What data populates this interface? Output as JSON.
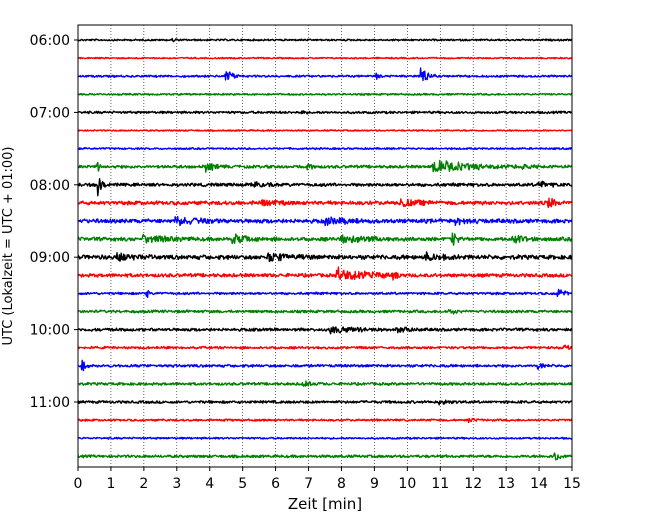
{
  "chart_data": {
    "type": "line",
    "title": "",
    "xlabel": "Zeit  [min]",
    "ylabel": "UTC (Lokalzeit = UTC + 01:00)",
    "xlim": [
      0,
      15
    ],
    "x_ticks": [
      "0",
      "1",
      "2",
      "3",
      "4",
      "5",
      "6",
      "7",
      "8",
      "9",
      "10",
      "11",
      "12",
      "13",
      "14",
      "15"
    ],
    "y_ticks": [
      "06:00",
      "07:00",
      "08:00",
      "09:00",
      "10:00",
      "11:00"
    ],
    "y_tick_trace_index": [
      0,
      4,
      8,
      12,
      16,
      20
    ],
    "grid": "vertical-dotted",
    "colors": [
      "#000000",
      "#ff0000",
      "#0000ff",
      "#008000"
    ],
    "traces": [
      {
        "start": "06:00",
        "color": "#000000",
        "noise": 0.6,
        "events": [
          {
            "t": 2.9,
            "amp": 3,
            "dur": 0.1
          }
        ]
      },
      {
        "start": "06:15",
        "color": "#ff0000",
        "noise": 0.5,
        "events": []
      },
      {
        "start": "06:30",
        "color": "#0000ff",
        "noise": 0.7,
        "events": [
          {
            "t": 4.5,
            "amp": 10,
            "dur": 0.4
          },
          {
            "t": 9.1,
            "amp": 4,
            "dur": 0.15
          },
          {
            "t": 10.45,
            "amp": 10,
            "dur": 0.4
          }
        ]
      },
      {
        "start": "06:45",
        "color": "#008000",
        "noise": 0.6,
        "events": []
      },
      {
        "start": "07:00",
        "color": "#000000",
        "noise": 0.8,
        "events": [
          {
            "t": 6.8,
            "amp": 3,
            "dur": 0.2
          }
        ]
      },
      {
        "start": "07:15",
        "color": "#ff0000",
        "noise": 0.5,
        "events": []
      },
      {
        "start": "07:30",
        "color": "#0000ff",
        "noise": 0.6,
        "events": []
      },
      {
        "start": "07:45",
        "color": "#008000",
        "noise": 1.0,
        "events": [
          {
            "t": 0.6,
            "amp": 5,
            "dur": 0.15
          },
          {
            "t": 3.9,
            "amp": 5,
            "dur": 0.6
          },
          {
            "t": 7.0,
            "amp": 4,
            "dur": 0.3
          },
          {
            "t": 10.8,
            "amp": 7,
            "dur": 2.5
          },
          {
            "t": 13.5,
            "amp": 3,
            "dur": 0.6
          }
        ]
      },
      {
        "start": "08:00",
        "color": "#000000",
        "noise": 1.1,
        "events": [
          {
            "t": 0.65,
            "amp": 12,
            "dur": 0.2
          },
          {
            "t": 5.3,
            "amp": 3,
            "dur": 0.8
          },
          {
            "t": 14.0,
            "amp": 4,
            "dur": 0.6
          }
        ]
      },
      {
        "start": "08:15",
        "color": "#ff0000",
        "noise": 1.3,
        "events": [
          {
            "t": 5.5,
            "amp": 4,
            "dur": 0.8
          },
          {
            "t": 9.8,
            "amp": 4,
            "dur": 1.2
          },
          {
            "t": 14.3,
            "amp": 6,
            "dur": 0.4
          }
        ]
      },
      {
        "start": "08:30",
        "color": "#0000ff",
        "noise": 1.4,
        "events": [
          {
            "t": 3.0,
            "amp": 4,
            "dur": 1.5
          },
          {
            "t": 7.5,
            "amp": 4,
            "dur": 1.4
          },
          {
            "t": 11.5,
            "amp": 3,
            "dur": 1.0
          }
        ]
      },
      {
        "start": "08:45",
        "color": "#008000",
        "noise": 1.3,
        "events": [
          {
            "t": 2.0,
            "amp": 4,
            "dur": 1.4
          },
          {
            "t": 4.7,
            "amp": 5,
            "dur": 1.0
          },
          {
            "t": 8.0,
            "amp": 5,
            "dur": 1.6
          },
          {
            "t": 11.4,
            "amp": 8,
            "dur": 0.3
          },
          {
            "t": 13.2,
            "amp": 4,
            "dur": 0.8
          }
        ]
      },
      {
        "start": "09:00",
        "color": "#000000",
        "noise": 1.5,
        "events": [
          {
            "t": 1.2,
            "amp": 4,
            "dur": 1.0
          },
          {
            "t": 5.8,
            "amp": 4,
            "dur": 1.4
          },
          {
            "t": 10.5,
            "amp": 4,
            "dur": 1.2
          }
        ]
      },
      {
        "start": "09:15",
        "color": "#ff0000",
        "noise": 1.2,
        "events": [
          {
            "t": 7.9,
            "amp": 8,
            "dur": 2.0
          },
          {
            "t": 9.6,
            "amp": 4,
            "dur": 0.2
          }
        ]
      },
      {
        "start": "09:30",
        "color": "#0000ff",
        "noise": 0.8,
        "events": [
          {
            "t": 2.1,
            "amp": 4,
            "dur": 0.15
          },
          {
            "t": 14.6,
            "amp": 8,
            "dur": 0.3
          }
        ]
      },
      {
        "start": "09:45",
        "color": "#008000",
        "noise": 0.9,
        "events": [
          {
            "t": 11.3,
            "amp": 3,
            "dur": 0.4
          }
        ]
      },
      {
        "start": "10:00",
        "color": "#000000",
        "noise": 1.0,
        "events": [
          {
            "t": 7.7,
            "amp": 4,
            "dur": 1.6
          },
          {
            "t": 9.7,
            "amp": 4,
            "dur": 0.8
          }
        ]
      },
      {
        "start": "10:15",
        "color": "#ff0000",
        "noise": 0.8,
        "events": [
          {
            "t": 14.8,
            "amp": 3,
            "dur": 0.3
          }
        ]
      },
      {
        "start": "10:30",
        "color": "#0000ff",
        "noise": 0.9,
        "events": [
          {
            "t": 0.15,
            "amp": 6,
            "dur": 0.2
          },
          {
            "t": 14.0,
            "amp": 4,
            "dur": 0.3
          }
        ]
      },
      {
        "start": "10:45",
        "color": "#008000",
        "noise": 0.9,
        "events": [
          {
            "t": 6.8,
            "amp": 3,
            "dur": 0.6
          }
        ]
      },
      {
        "start": "11:00",
        "color": "#000000",
        "noise": 0.9,
        "events": [
          {
            "t": 11.0,
            "amp": 3,
            "dur": 0.6
          }
        ]
      },
      {
        "start": "11:15",
        "color": "#ff0000",
        "noise": 0.7,
        "events": [
          {
            "t": 11.9,
            "amp": 3,
            "dur": 0.3
          }
        ]
      },
      {
        "start": "11:30",
        "color": "#0000ff",
        "noise": 0.6,
        "events": []
      },
      {
        "start": "11:45",
        "color": "#008000",
        "noise": 0.9,
        "events": [
          {
            "t": 14.5,
            "amp": 5,
            "dur": 0.5
          }
        ]
      }
    ]
  }
}
